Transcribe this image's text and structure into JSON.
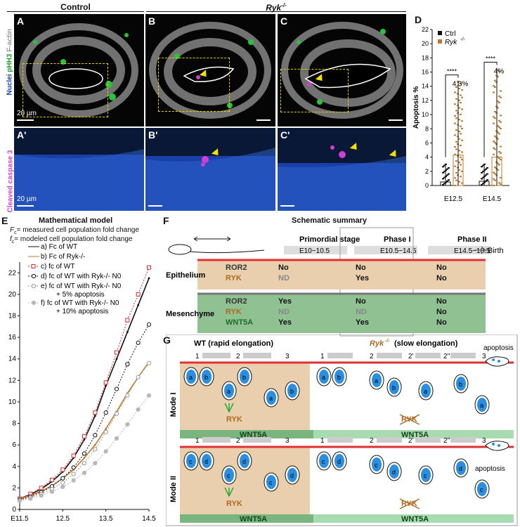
{
  "panels": {
    "top_headers": {
      "control": "Control",
      "ryk": "Ryk"
    },
    "ryk_sup": "-/-",
    "letters": {
      "A": "A",
      "B": "B",
      "C": "C",
      "D": "D",
      "A1": "A'",
      "B1": "B'",
      "C1": "C'",
      "E": "E",
      "F": "F",
      "G": "G"
    },
    "side_label_top": {
      "factin": "F-actin",
      "pH3": "pHH3",
      "nuclei": "Nuclei"
    },
    "side_label_bottom": "Cleaved caspase 3",
    "scale_bar_label": "20 µm"
  },
  "chart_d": {
    "type": "scatter",
    "ylabel": "Apoptosis %",
    "yticks": [
      "0",
      "2",
      "4",
      "6",
      "8",
      "10",
      "12",
      "14",
      "16",
      "18",
      "20",
      "22"
    ],
    "ylim": [
      0,
      22
    ],
    "categories": [
      "E12.5",
      "E14.5"
    ],
    "legend": [
      {
        "name": "Ctrl",
        "color": "#111111"
      },
      {
        "name": "Ryk-/-",
        "color": "#c07a2a"
      }
    ],
    "legend_name_ryk": "Ryk",
    "legend_sup": "-/-",
    "significance": [
      "****",
      "****"
    ],
    "means_label": [
      "4.3%",
      "4%"
    ],
    "series": [
      {
        "name": "Ctrl",
        "values": [
          0.5,
          0.6
        ],
        "max": [
          3.0,
          3.0
        ]
      },
      {
        "name": "Ryk-/-",
        "values": [
          4.3,
          4.0
        ],
        "max": [
          14.8,
          16.6
        ]
      }
    ]
  },
  "chart_data": {
    "type": "line",
    "title": "Mathematical model",
    "notes": [
      "Fc= measured cell population fold change",
      "fc= modeled cell population fold change"
    ],
    "notes_sym": [
      "F",
      "f"
    ],
    "notes_sub": [
      "c",
      "c"
    ],
    "notes_rest": [
      "= measured cell population fold change",
      "= modeled cell population fold change"
    ],
    "xlabel": "",
    "x_ticks": [
      "E11.5",
      "12.5",
      "13.5",
      "14.5"
    ],
    "y_ticks": [
      "0",
      "2",
      "4",
      "6",
      "8",
      "10",
      "12",
      "14",
      "16",
      "18",
      "20",
      "22"
    ],
    "xlim": [
      11.5,
      14.5
    ],
    "ylim": [
      0,
      23
    ],
    "x": [
      11.5,
      11.75,
      12.0,
      12.25,
      12.5,
      12.75,
      13.0,
      13.25,
      13.5,
      13.75,
      14.0,
      14.25,
      14.5
    ],
    "legend": [
      {
        "key": "a)",
        "text": "Fc of WT"
      },
      {
        "key": "b)",
        "text": "Fc of Ryk-/-"
      },
      {
        "key": "c)",
        "text": "fc of WT"
      },
      {
        "key": "d)",
        "text": "fc of WT with Ryk-/- N0"
      },
      {
        "key": "e)",
        "text": "fc of WT with Ryk-/- N0 + 5% apoptosis"
      },
      {
        "key": "f)",
        "text": "fc of WT with Ryk-/- N0 + 10% apoptosis"
      }
    ],
    "series": [
      {
        "name": "a) Fc of WT",
        "color": "#111111",
        "style": "solid",
        "values": [
          1,
          1.4,
          1.9,
          2.6,
          3.5,
          4.8,
          6.5,
          8.7,
          11.5,
          14.0,
          16.5,
          19.0,
          21.5
        ]
      },
      {
        "name": "b) Fc of Ryk-/-",
        "color": "#c07a2a",
        "style": "solid",
        "values": [
          1,
          1.3,
          1.7,
          2.2,
          2.9,
          3.7,
          4.8,
          6.0,
          7.5,
          9.1,
          10.8,
          12.3,
          13.7
        ]
      },
      {
        "name": "c) fc of WT",
        "color": "#d92b2b",
        "style": "square",
        "values": [
          1,
          1.45,
          2.0,
          2.75,
          3.7,
          5.0,
          6.8,
          9.0,
          11.8,
          14.6,
          17.6,
          20.0,
          22.5
        ]
      },
      {
        "name": "d) fc of WT with Ryk-/- N0",
        "color": "#111111",
        "style": "circle",
        "values": [
          0.9,
          1.2,
          1.6,
          2.15,
          2.9,
          3.9,
          5.2,
          6.9,
          9.0,
          11.2,
          13.5,
          15.5,
          17.2
        ]
      },
      {
        "name": "e) fc of WT with Ryk-/- N0 + 5% apoptosis",
        "color": "#9a9a9a",
        "style": "circle",
        "values": [
          0.85,
          1.1,
          1.45,
          1.9,
          2.5,
          3.3,
          4.3,
          5.6,
          7.2,
          8.9,
          10.6,
          12.3,
          13.6
        ]
      },
      {
        "name": "f) fc of WT with Ryk-/- N0 + 10% apoptosis",
        "color": "#b8b8b8",
        "style": "circle",
        "values": [
          0.8,
          1.0,
          1.3,
          1.65,
          2.1,
          2.7,
          3.4,
          4.3,
          5.4,
          6.6,
          7.9,
          9.3,
          10.6
        ]
      }
    ]
  },
  "schematic": {
    "title": "Schematic summary",
    "stages": [
      {
        "name": "Primordial stage",
        "range": "E10−10.5"
      },
      {
        "name": "Phase I",
        "range": "E10.5−14.5"
      },
      {
        "name": "Phase II",
        "range": "E14.5−18.5"
      }
    ],
    "birth": "Birth",
    "tissues": [
      {
        "name": "Epithelium",
        "rows": [
          {
            "gene": "ROR2",
            "color": "#333333",
            "vals": [
              "No",
              "No",
              "No"
            ]
          },
          {
            "gene": "RYK",
            "color": "#b06a1f",
            "vals": [
              "ND",
              "Yes",
              "No"
            ]
          }
        ]
      },
      {
        "name": "Mesenchyme",
        "rows": [
          {
            "gene": "ROR2",
            "color": "#333333",
            "vals": [
              "Yes",
              "No",
              "No"
            ]
          },
          {
            "gene": "RYK",
            "color": "#b06a1f",
            "vals": [
              "ND",
              "ND",
              "No"
            ]
          },
          {
            "gene": "WNT5A",
            "color": "#1f6b2a",
            "vals": [
              "Yes",
              "Yes",
              "No"
            ]
          }
        ]
      }
    ]
  },
  "panel_g": {
    "wt_title": "WT (rapid elongation)",
    "ryk_title_name": "Ryk",
    "ryk_title_sup": "-/-",
    "ryk_title_rest": " (slow elongation)",
    "mode1": "Mode I",
    "mode2": "Mode II",
    "wnt5a": "WNT5A",
    "ryk_label": "RYK",
    "apoptosis": "apoptosis",
    "wt_steps": [
      "1",
      "2",
      "3"
    ],
    "ryk_steps": [
      "1",
      "2",
      "2'",
      "2''",
      "3"
    ],
    "cell_labels_mode1": [
      "a",
      "b"
    ],
    "cell_labels_mode2": [
      "c",
      "d"
    ]
  }
}
